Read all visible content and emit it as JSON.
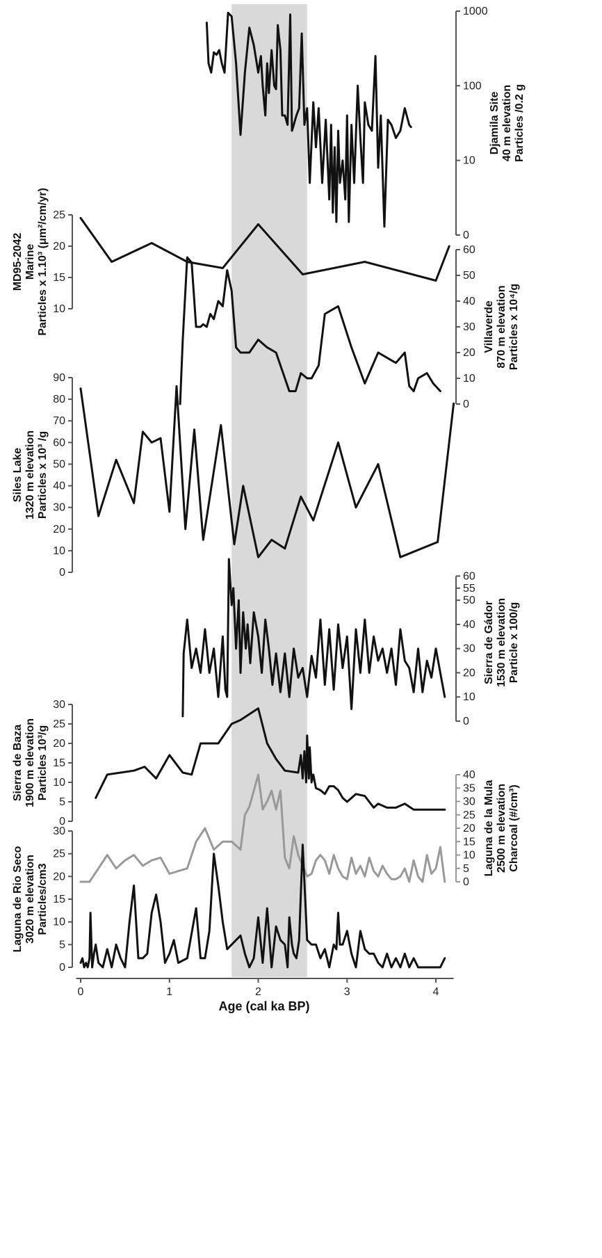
{
  "chart_data": {
    "type": "line",
    "x_axis": {
      "label": "Age (cal ka BP)",
      "ticks": [
        0,
        1,
        2,
        3,
        4
      ],
      "range": [
        -0.05,
        4.2
      ]
    },
    "highlight_band": {
      "x": [
        1.7,
        2.55
      ],
      "color": "#d9d9d9"
    },
    "panels": [
      {
        "id": "djamila",
        "name": "Djamila Site",
        "label_lines": [
          "Djamila Site",
          "40 m elevation",
          "Particles /0.2 g"
        ],
        "axis_side": "right",
        "scale": "log",
        "ylim": [
          1,
          1000
        ],
        "ticks": [
          1,
          10,
          100,
          1000
        ],
        "tick_labels": [
          "0",
          "10",
          "100",
          "1000"
        ],
        "color": "#111111",
        "x": [
          1.42,
          1.44,
          1.47,
          1.5,
          1.53,
          1.56,
          1.59,
          1.62,
          1.66,
          1.7,
          1.75,
          1.8,
          1.85,
          1.9,
          1.95,
          2.0,
          2.03,
          2.05,
          2.08,
          2.1,
          2.12,
          2.15,
          2.18,
          2.2,
          2.22,
          2.25,
          2.27,
          2.3,
          2.33,
          2.36,
          2.38,
          2.4,
          2.43,
          2.46,
          2.49,
          2.52,
          2.55,
          2.58,
          2.62,
          2.65,
          2.68,
          2.72,
          2.76,
          2.8,
          2.82,
          2.84,
          2.86,
          2.88,
          2.9,
          2.92,
          2.95,
          2.98,
          3.0,
          3.02,
          3.05,
          3.08,
          3.12,
          3.15,
          3.18,
          3.2,
          3.24,
          3.28,
          3.32,
          3.35,
          3.38,
          3.42,
          3.46,
          3.5,
          3.55,
          3.6,
          3.65,
          3.7,
          3.72
        ],
        "y": [
          700,
          200,
          150,
          280,
          260,
          300,
          200,
          150,
          950,
          850,
          200,
          22,
          150,
          600,
          350,
          150,
          250,
          100,
          40,
          200,
          80,
          300,
          100,
          90,
          650,
          300,
          40,
          40,
          30,
          900,
          25,
          30,
          40,
          50,
          500,
          30,
          50,
          5,
          60,
          15,
          50,
          5,
          35,
          3,
          30,
          2,
          15,
          1.5,
          25,
          5,
          10,
          3,
          40,
          1.5,
          30,
          5,
          100,
          20,
          5,
          60,
          30,
          25,
          250,
          8,
          40,
          1.3,
          35,
          30,
          20,
          25,
          50,
          30,
          28
        ]
      },
      {
        "id": "md95",
        "name": "MD95-2042",
        "label_lines": [
          "MD95-2042",
          "Marine",
          "Particles x 1.10³ (μm²/cm/yr)"
        ],
        "axis_side": "left",
        "scale": "linear",
        "ylim": [
          10,
          25
        ],
        "ticks": [
          10,
          15,
          20,
          25
        ],
        "color": "#111111",
        "x": [
          0.0,
          0.35,
          0.8,
          1.2,
          1.6,
          2.0,
          2.5,
          3.2,
          4.0,
          4.15
        ],
        "y": [
          24.5,
          17.5,
          20.5,
          17.5,
          16.5,
          23.5,
          15.5,
          17.5,
          14.5,
          20.0
        ]
      },
      {
        "id": "villaverde",
        "name": "Villaverde",
        "label_lines": [
          "Villaverde",
          "870 m elevation",
          "Particles x 10⁴/g"
        ],
        "axis_side": "right",
        "scale": "linear",
        "ylim": [
          0,
          60
        ],
        "ticks": [
          0,
          10,
          20,
          30,
          40,
          50,
          60
        ],
        "color": "#111111",
        "x": [
          1.12,
          1.15,
          1.2,
          1.25,
          1.3,
          1.35,
          1.38,
          1.42,
          1.46,
          1.5,
          1.55,
          1.6,
          1.65,
          1.7,
          1.75,
          1.8,
          1.9,
          2.0,
          2.1,
          2.2,
          2.28,
          2.35,
          2.42,
          2.48,
          2.55,
          2.6,
          2.68,
          2.75,
          2.9,
          3.05,
          3.2,
          3.35,
          3.45,
          3.55,
          3.65,
          3.7,
          3.75,
          3.8,
          3.9,
          3.97,
          4.05
        ],
        "y": [
          0,
          25,
          57,
          55,
          30,
          30,
          31,
          30,
          35,
          33,
          40,
          38,
          52,
          44,
          22,
          20,
          20,
          25,
          22,
          20,
          12,
          5,
          5,
          12,
          10,
          10,
          15,
          35,
          38,
          22,
          8,
          20,
          18,
          16,
          20,
          7,
          5,
          10,
          12,
          8,
          5
        ]
      },
      {
        "id": "siles",
        "name": "Siles Lake",
        "label_lines": [
          "Siles Lake",
          "1320 m elevation",
          "Particles x 10³ /g"
        ],
        "axis_side": "left",
        "scale": "linear",
        "ylim": [
          0,
          90
        ],
        "ticks": [
          0,
          10,
          20,
          30,
          40,
          50,
          60,
          70,
          80,
          90
        ],
        "color": "#111111",
        "x": [
          0.0,
          0.2,
          0.4,
          0.6,
          0.7,
          0.8,
          0.9,
          1.0,
          1.08,
          1.18,
          1.28,
          1.38,
          1.58,
          1.73,
          1.83,
          2.0,
          2.15,
          2.3,
          2.48,
          2.62,
          2.9,
          3.1,
          3.35,
          3.6,
          4.02,
          4.2
        ],
        "y": [
          85,
          26,
          52,
          32,
          65,
          60,
          62,
          28,
          86,
          20,
          66,
          15,
          68,
          13,
          40,
          7,
          15,
          11,
          35,
          24,
          60,
          30,
          50,
          7,
          14,
          78
        ]
      },
      {
        "id": "gador",
        "name": "Sierra de Gádor",
        "label_lines": [
          "Sierra de Gádor",
          "1530 m elevation",
          "Particle x 100/g"
        ],
        "axis_side": "right",
        "scale": "linear",
        "ylim": [
          0,
          65
        ],
        "ticks": [
          0,
          10,
          20,
          30,
          40,
          50,
          55,
          60
        ],
        "color": "#111111",
        "x": [
          1.15,
          1.16,
          1.2,
          1.25,
          1.3,
          1.35,
          1.4,
          1.45,
          1.5,
          1.55,
          1.6,
          1.63,
          1.65,
          1.67,
          1.7,
          1.72,
          1.75,
          1.78,
          1.8,
          1.83,
          1.86,
          1.88,
          1.91,
          1.95,
          2.0,
          2.04,
          2.08,
          2.12,
          2.16,
          2.2,
          2.25,
          2.3,
          2.35,
          2.4,
          2.45,
          2.5,
          2.55,
          2.6,
          2.65,
          2.7,
          2.75,
          2.8,
          2.85,
          2.9,
          2.95,
          3.0,
          3.05,
          3.1,
          3.15,
          3.2,
          3.25,
          3.3,
          3.35,
          3.4,
          3.45,
          3.5,
          3.55,
          3.6,
          3.65,
          3.7,
          3.75,
          3.8,
          3.85,
          3.9,
          3.95,
          4.0,
          4.05,
          4.1
        ],
        "y": [
          2,
          28,
          42,
          22,
          30,
          20,
          38,
          20,
          30,
          10,
          35,
          13,
          10,
          67,
          48,
          55,
          30,
          50,
          20,
          45,
          30,
          40,
          24,
          45,
          35,
          20,
          42,
          30,
          15,
          28,
          12,
          28,
          10,
          30,
          18,
          22,
          10,
          27,
          18,
          42,
          15,
          38,
          13,
          40,
          22,
          35,
          5,
          38,
          20,
          42,
          20,
          35,
          25,
          30,
          20,
          30,
          15,
          38,
          25,
          22,
          12,
          30,
          12,
          25,
          18,
          30,
          20,
          10
        ]
      },
      {
        "id": "baza",
        "name": "Sierra de Baza",
        "label_lines": [
          "Sierra de Baza",
          "1900 m elevation",
          "Particles  10³/g"
        ],
        "axis_side": "left",
        "scale": "linear",
        "ylim": [
          0,
          30
        ],
        "ticks": [
          0,
          5,
          10,
          15,
          20,
          25,
          30
        ],
        "color": "#111111",
        "x": [
          0.17,
          0.3,
          0.45,
          0.6,
          0.72,
          0.85,
          1.0,
          1.15,
          1.25,
          1.35,
          1.45,
          1.55,
          1.7,
          1.8,
          1.9,
          2.0,
          2.1,
          2.2,
          2.3,
          2.45,
          2.48,
          2.5,
          2.52,
          2.54,
          2.55,
          2.57,
          2.58,
          2.6,
          2.62,
          2.65,
          2.7,
          2.75,
          2.8,
          2.85,
          2.9,
          2.95,
          3.0,
          3.1,
          3.2,
          3.3,
          3.35,
          3.45,
          3.55,
          3.65,
          3.75,
          3.85,
          3.95,
          4.05,
          4.1
        ],
        "y": [
          6,
          12,
          12.5,
          13,
          14,
          11,
          17,
          12.5,
          12,
          20,
          20,
          20,
          25,
          26,
          27.5,
          29,
          20,
          16,
          13,
          12.5,
          17,
          11,
          18,
          10,
          22,
          11,
          19,
          10,
          12,
          8.5,
          8,
          7,
          9,
          9,
          8,
          6,
          5,
          7,
          6.5,
          3.5,
          4.5,
          3.5,
          3.5,
          4.5,
          3,
          3,
          3,
          3,
          3
        ]
      },
      {
        "id": "mula",
        "name": "Laguna de la Mula",
        "label_lines": [
          "Laguna de la Mula",
          "2500 m elevation",
          "Charcoal (#/cm³)"
        ],
        "axis_side": "right",
        "scale": "linear",
        "ylim": [
          0,
          40
        ],
        "ticks": [
          0,
          5,
          10,
          15,
          20,
          25,
          30,
          35,
          40
        ],
        "color": "#999999",
        "x": [
          0.0,
          0.1,
          0.2,
          0.3,
          0.4,
          0.5,
          0.6,
          0.7,
          0.8,
          0.9,
          1.0,
          1.1,
          1.2,
          1.3,
          1.4,
          1.5,
          1.6,
          1.7,
          1.8,
          1.85,
          1.9,
          1.95,
          2.0,
          2.05,
          2.1,
          2.15,
          2.2,
          2.25,
          2.3,
          2.35,
          2.4,
          2.45,
          2.5,
          2.55,
          2.6,
          2.65,
          2.7,
          2.75,
          2.8,
          2.85,
          2.9,
          2.95,
          3.0,
          3.05,
          3.1,
          3.15,
          3.2,
          3.25,
          3.3,
          3.35,
          3.4,
          3.45,
          3.5,
          3.55,
          3.6,
          3.65,
          3.7,
          3.75,
          3.8,
          3.85,
          3.9,
          3.95,
          4.0,
          4.05,
          4.1
        ],
        "y": [
          0,
          0,
          5,
          10,
          5,
          8,
          10,
          6,
          8,
          9,
          3,
          4,
          5,
          15,
          20,
          12,
          15,
          15,
          12,
          25,
          28,
          34,
          40,
          27,
          30,
          34,
          27,
          34,
          9,
          5,
          17,
          10,
          6,
          2,
          3,
          8,
          10,
          8,
          3,
          10,
          5,
          2,
          1,
          9,
          3,
          6,
          2,
          9,
          4,
          2,
          6,
          3,
          1,
          1,
          2,
          5,
          0,
          8,
          2,
          0,
          10,
          3,
          5,
          13,
          0
        ]
      },
      {
        "id": "rioseco",
        "name": "Laguna de Rio Seco",
        "label_lines": [
          "Laguna de Rio Seco",
          "3020 m elevation",
          "Particles/cm3"
        ],
        "axis_side": "left",
        "scale": "linear",
        "ylim": [
          0,
          30
        ],
        "ticks": [
          0,
          5,
          10,
          15,
          20,
          25,
          30
        ],
        "color": "#111111",
        "x": [
          0.0,
          0.02,
          0.04,
          0.06,
          0.08,
          0.1,
          0.11,
          0.13,
          0.15,
          0.17,
          0.2,
          0.25,
          0.3,
          0.35,
          0.4,
          0.45,
          0.5,
          0.55,
          0.6,
          0.65,
          0.7,
          0.75,
          0.8,
          0.85,
          0.9,
          0.95,
          1.0,
          1.05,
          1.1,
          1.2,
          1.3,
          1.35,
          1.4,
          1.45,
          1.5,
          1.55,
          1.6,
          1.65,
          1.7,
          1.75,
          1.8,
          1.85,
          1.9,
          1.95,
          2.0,
          2.05,
          2.1,
          2.15,
          2.2,
          2.25,
          2.3,
          2.33,
          2.35,
          2.38,
          2.4,
          2.43,
          2.46,
          2.5,
          2.55,
          2.6,
          2.65,
          2.7,
          2.75,
          2.8,
          2.85,
          2.88,
          2.9,
          2.92,
          2.95,
          3.0,
          3.05,
          3.1,
          3.15,
          3.2,
          3.25,
          3.3,
          3.35,
          3.4,
          3.45,
          3.5,
          3.55,
          3.6,
          3.65,
          3.7,
          3.75,
          3.8,
          3.85,
          3.9,
          3.95,
          4.0,
          4.05,
          4.1
        ],
        "y": [
          1,
          2,
          0,
          1,
          0,
          2,
          12,
          0,
          3,
          5,
          1,
          0,
          4,
          0,
          5,
          2,
          0,
          10,
          18,
          2,
          2,
          3,
          12,
          16,
          10,
          1,
          3,
          6,
          1,
          2,
          13,
          2,
          2,
          8,
          25,
          18,
          10,
          4,
          5,
          6,
          7,
          3,
          0,
          2,
          11,
          1,
          13,
          0,
          9,
          6,
          5,
          0,
          11,
          5,
          3,
          2,
          6,
          27,
          6,
          5,
          5,
          2,
          4,
          0,
          5,
          4,
          12,
          5,
          5,
          8,
          3,
          0,
          8,
          4,
          3,
          3,
          1,
          0,
          3,
          0,
          2,
          0,
          3,
          0,
          2,
          0,
          0,
          0,
          0,
          0,
          0,
          2
        ]
      }
    ]
  }
}
